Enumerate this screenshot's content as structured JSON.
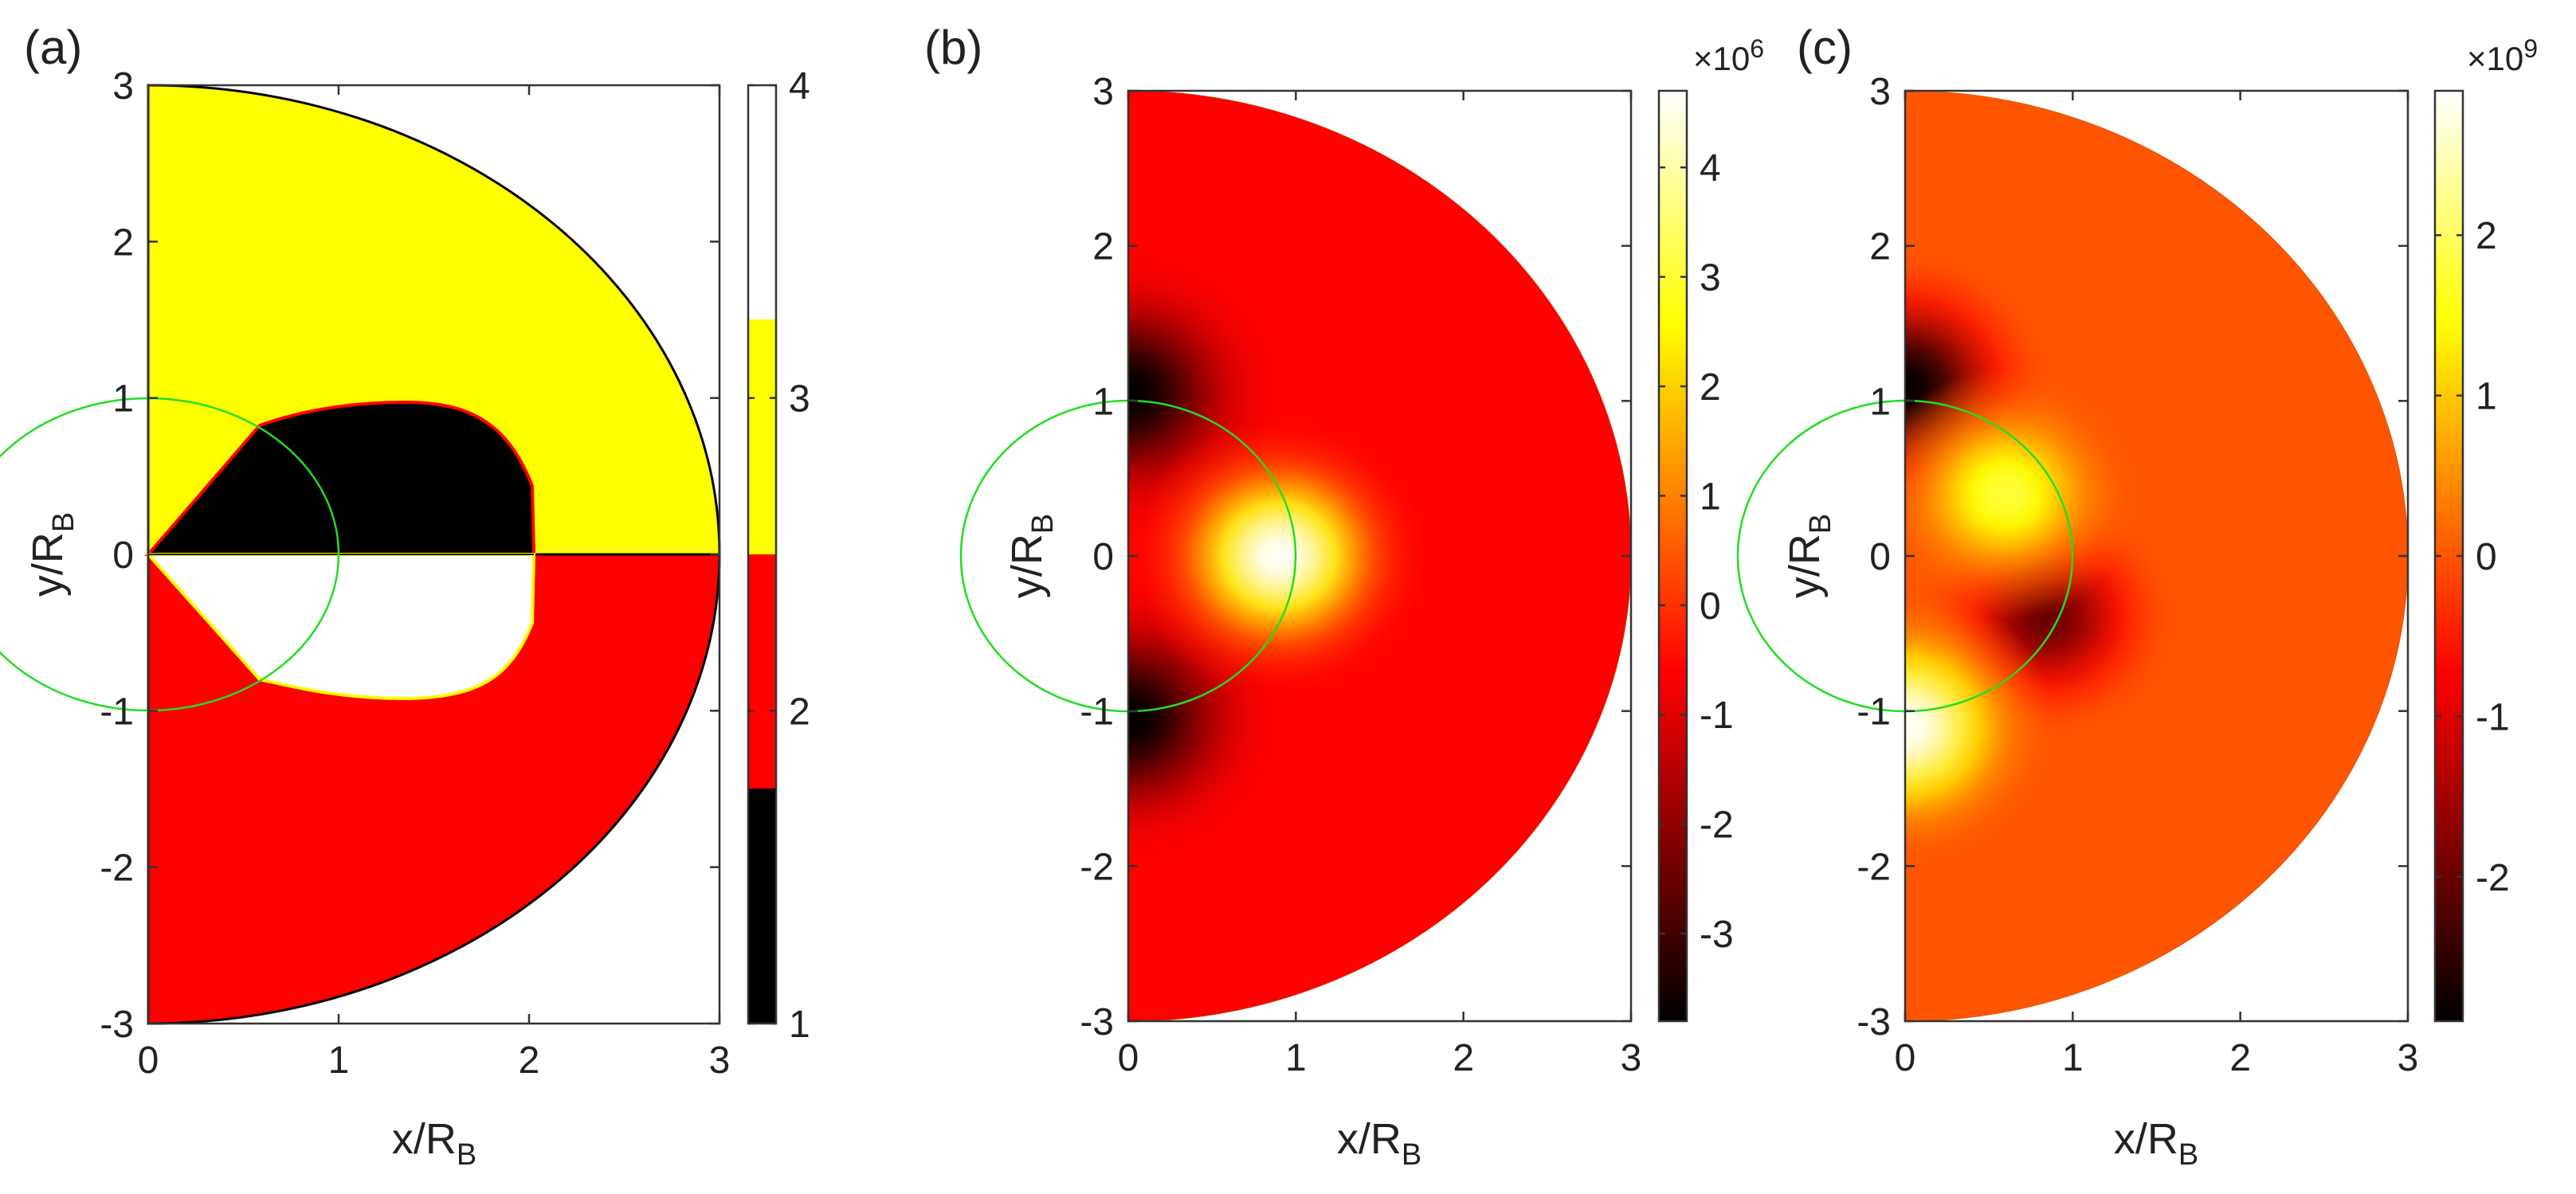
{
  "chart_data": [
    {
      "id": "a",
      "type": "heatmap",
      "panel_label": "(a)",
      "description_type": "categorical region map",
      "xlabel": "x/R",
      "xlabel_sub": "B",
      "ylabel": "y/R",
      "ylabel_sub": "B",
      "xlim": [
        0,
        3
      ],
      "ylim": [
        -3,
        3
      ],
      "xticks": [
        "0",
        "1",
        "2",
        "3"
      ],
      "yticks": [
        "3",
        "2",
        "1",
        "0",
        "-1",
        "-2",
        "-3"
      ],
      "colorbar": {
        "range": [
          1,
          4
        ],
        "ticks": [
          "1",
          "2",
          "3",
          "4"
        ],
        "levels": [
          {
            "from": 1,
            "to": 1.75,
            "color": "#000000"
          },
          {
            "from": 1.75,
            "to": 2.5,
            "color": "#ff0000"
          },
          {
            "from": 2.5,
            "to": 3.25,
            "color": "#ffff00"
          },
          {
            "from": 3.25,
            "to": 4,
            "color": "#ffffff"
          }
        ]
      },
      "regions": [
        {
          "name": "upper-half",
          "value": 3
        },
        {
          "name": "lower-half",
          "value": 2
        },
        {
          "name": "upper-lobe",
          "value": 1
        },
        {
          "name": "lower-lobe",
          "value": 4
        }
      ],
      "overlay_circle": {
        "center": [
          0,
          0
        ],
        "radius": 1,
        "color": "#22dd22"
      }
    },
    {
      "id": "b",
      "type": "heatmap",
      "panel_label": "(b)",
      "xlabel": "x/R",
      "xlabel_sub": "B",
      "ylabel": "y/R",
      "ylabel_sub": "B",
      "xlim": [
        0,
        3
      ],
      "ylim": [
        -3,
        3
      ],
      "xticks": [
        "0",
        "1",
        "2",
        "3"
      ],
      "yticks": [
        "3",
        "2",
        "1",
        "0",
        "-1",
        "-2",
        "-3"
      ],
      "colorbar": {
        "range": [
          -3.8,
          4.7
        ],
        "ticks": [
          -3,
          -2,
          -1,
          0,
          1,
          2,
          3,
          4
        ],
        "tick_labels": [
          "-3",
          "-2",
          "-1",
          "0",
          "1",
          "2",
          "3",
          "4"
        ],
        "exponent": "×10",
        "exponent_power": "6"
      },
      "background_value": -0.6,
      "features": [
        {
          "x": 0.0,
          "y": 1.05,
          "value": -3.8,
          "sigma": 0.32
        },
        {
          "x": 0.0,
          "y": -1.05,
          "value": -3.8,
          "sigma": 0.32
        },
        {
          "x": 0.9,
          "y": 0.0,
          "value": 4.7,
          "sigma": 0.3
        }
      ],
      "overlay_circle": {
        "center": [
          0,
          0
        ],
        "radius": 1,
        "color": "#22dd22"
      }
    },
    {
      "id": "c",
      "type": "heatmap",
      "panel_label": "(c)",
      "xlabel": "x/R",
      "xlabel_sub": "B",
      "ylabel": "y/R",
      "ylabel_sub": "B",
      "xlim": [
        0,
        3
      ],
      "ylim": [
        -3,
        3
      ],
      "xticks": [
        "0",
        "1",
        "2",
        "3"
      ],
      "yticks": [
        "3",
        "2",
        "1",
        "0",
        "-1",
        "-2",
        "-3"
      ],
      "colorbar": {
        "range": [
          -2.9,
          2.9
        ],
        "ticks": [
          -2,
          -1,
          0,
          1,
          2
        ],
        "tick_labels": [
          "-2",
          "-1",
          "0",
          "1",
          "2"
        ],
        "exponent": "×10",
        "exponent_power": "9"
      },
      "background_value": 0.0,
      "features": [
        {
          "x": 0.0,
          "y": 1.1,
          "value": -2.9,
          "sigma": 0.3
        },
        {
          "x": 0.85,
          "y": -0.4,
          "value": -2.0,
          "sigma": 0.27
        },
        {
          "x": 0.6,
          "y": 0.4,
          "value": 1.8,
          "sigma": 0.27
        },
        {
          "x": 0.0,
          "y": -1.1,
          "value": 2.9,
          "sigma": 0.3
        }
      ],
      "overlay_circle": {
        "center": [
          0,
          0
        ],
        "radius": 1,
        "color": "#22dd22"
      }
    }
  ]
}
